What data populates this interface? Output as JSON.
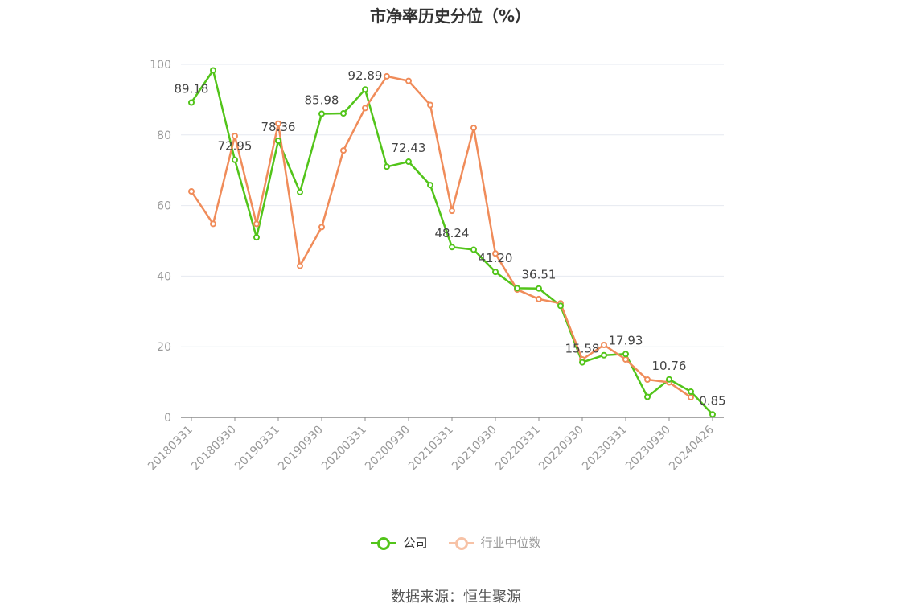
{
  "chart_data": {
    "type": "line",
    "title": "市净率历史分位（%）",
    "source": "数据来源：恒生聚源",
    "ylim": [
      0,
      100
    ],
    "yticks": [
      0,
      20,
      40,
      60,
      80,
      100
    ],
    "grid": true,
    "legend_position": "bottom",
    "x": [
      "20180331",
      "20180630",
      "20180930",
      "20181231",
      "20190331",
      "20190630",
      "20190930",
      "20191231",
      "20200331",
      "20200630",
      "20200930",
      "20201231",
      "20210331",
      "20210630",
      "20210930",
      "20211231",
      "20220331",
      "20220630",
      "20220930",
      "20221231",
      "20230331",
      "20230630",
      "20230930",
      "20231231",
      "20240426"
    ],
    "xtick_labels": [
      "20180331",
      "20180930",
      "20190331",
      "20190930",
      "20200331",
      "20200930",
      "20210331",
      "20210930",
      "20220331",
      "20220930",
      "20230331",
      "20230930",
      "20240426"
    ],
    "series": [
      {
        "name": "公司",
        "color": "#52c41a",
        "values": [
          89.18,
          98.3,
          72.95,
          51.0,
          78.36,
          63.8,
          85.98,
          86.1,
          92.89,
          71.0,
          72.43,
          65.8,
          48.24,
          47.5,
          41.2,
          36.6,
          36.51,
          31.6,
          15.58,
          17.6,
          17.93,
          5.8,
          10.76,
          7.3,
          0.85
        ],
        "labels": {
          "0": "89.18",
          "2": "72.95",
          "4": "78.36",
          "6": "85.98",
          "8": "92.89",
          "10": "72.43",
          "12": "48.24",
          "14": "41.20",
          "16": "36.51",
          "18": "15.58",
          "20": "17.93",
          "22": "10.76",
          "24": "0.85"
        }
      },
      {
        "name": "行业中位数",
        "color": "#f08c5a",
        "values": [
          64.0,
          54.8,
          79.7,
          54.8,
          83.2,
          42.9,
          53.9,
          75.6,
          87.6,
          96.6,
          95.3,
          88.5,
          58.5,
          82.0,
          46.4,
          36.2,
          33.5,
          32.3,
          16.4,
          20.5,
          16.4,
          10.7,
          9.9,
          5.7,
          null
        ]
      }
    ]
  },
  "legend": {
    "company_label": "公司",
    "industry_label": "行业中位数"
  }
}
